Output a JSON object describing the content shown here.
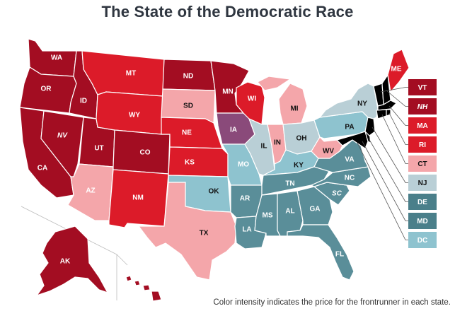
{
  "title": "The State of the Democratic Race",
  "footnote": "Color intensity indicates the price for the frontrunner in each state.",
  "palette": {
    "dark_red": "#a30d22",
    "red": "#dc1b29",
    "pink": "#f4a6aa",
    "purple": "#8a4a7a",
    "light_blue": "#8ec3cf",
    "pale_blue": "#b9cfd6",
    "teal": "#5a8e99",
    "dark_teal": "#4a7f8a"
  },
  "states": {
    "WA": {
      "label": "WA",
      "color": "#a30d22"
    },
    "OR": {
      "label": "OR",
      "color": "#a30d22"
    },
    "CA": {
      "label": "CA",
      "color": "#a30d22"
    },
    "ID": {
      "label": "ID",
      "color": "#a30d22"
    },
    "NV": {
      "label": "NV",
      "color": "#a30d22",
      "italic": true
    },
    "UT": {
      "label": "UT",
      "color": "#a30d22"
    },
    "AZ": {
      "label": "AZ",
      "color": "#f4a6aa"
    },
    "MT": {
      "label": "MT",
      "color": "#dc1b29"
    },
    "WY": {
      "label": "WY",
      "color": "#dc1b29"
    },
    "CO": {
      "label": "CO",
      "color": "#a30d22"
    },
    "NM": {
      "label": "NM",
      "color": "#dc1b29"
    },
    "ND": {
      "label": "ND",
      "color": "#a30d22"
    },
    "SD": {
      "label": "SD",
      "color": "#f4a6aa"
    },
    "NE": {
      "label": "NE",
      "color": "#dc1b29"
    },
    "KS": {
      "label": "KS",
      "color": "#dc1b29"
    },
    "OK": {
      "label": "OK",
      "color": "#8ec3cf"
    },
    "TX": {
      "label": "TX",
      "color": "#f4a6aa"
    },
    "MN": {
      "label": "MN",
      "color": "#a30d22"
    },
    "IA": {
      "label": "IA",
      "color": "#8a4a7a"
    },
    "MO": {
      "label": "MO",
      "color": "#8ec3cf"
    },
    "AR": {
      "label": "AR",
      "color": "#5a8e99"
    },
    "LA": {
      "label": "LA",
      "color": "#5a8e99"
    },
    "WI": {
      "label": "WI",
      "color": "#dc1b29"
    },
    "IL": {
      "label": "IL",
      "color": "#b9cfd6"
    },
    "MI": {
      "label": "MI",
      "color": "#f4a6aa"
    },
    "IN": {
      "label": "IN",
      "color": "#f4a6aa"
    },
    "OH": {
      "label": "OH",
      "color": "#b9cfd6"
    },
    "KY": {
      "label": "KY",
      "color": "#8ec3cf"
    },
    "TN": {
      "label": "TN",
      "color": "#5a8e99"
    },
    "MS": {
      "label": "MS",
      "color": "#5a8e99"
    },
    "AL": {
      "label": "AL",
      "color": "#5a8e99"
    },
    "GA": {
      "label": "GA",
      "color": "#5a8e99"
    },
    "FL": {
      "label": "FL",
      "color": "#5a8e99"
    },
    "SC": {
      "label": "SC",
      "color": "#5a8e99",
      "italic": true
    },
    "NC": {
      "label": "NC",
      "color": "#5a8e99"
    },
    "VA": {
      "label": "VA",
      "color": "#5a8e99"
    },
    "WV": {
      "label": "WV",
      "color": "#f4a6aa"
    },
    "PA": {
      "label": "PA",
      "color": "#8ec3cf"
    },
    "NY": {
      "label": "NY",
      "color": "#b9cfd6"
    },
    "ME": {
      "label": "ME",
      "color": "#dc1b29"
    },
    "AK": {
      "label": "AK",
      "color": "#a30d22"
    },
    "HI": {
      "label": "",
      "color": "#a30d22"
    }
  },
  "legend_boxes": [
    {
      "label": "VT",
      "color": "#a30d22",
      "italic": false
    },
    {
      "label": "NH",
      "color": "#a30d22",
      "italic": true
    },
    {
      "label": "MA",
      "color": "#dc1b29",
      "italic": false
    },
    {
      "label": "RI",
      "color": "#dc1b29",
      "italic": false
    },
    {
      "label": "CT",
      "color": "#f4a6aa",
      "italic": false
    },
    {
      "label": "NJ",
      "color": "#b9cfd6",
      "italic": false
    },
    {
      "label": "DE",
      "color": "#4a7f8a",
      "italic": false
    },
    {
      "label": "MD",
      "color": "#4a7f8a",
      "italic": false
    },
    {
      "label": "DC",
      "color": "#8ec3cf",
      "italic": false
    }
  ]
}
